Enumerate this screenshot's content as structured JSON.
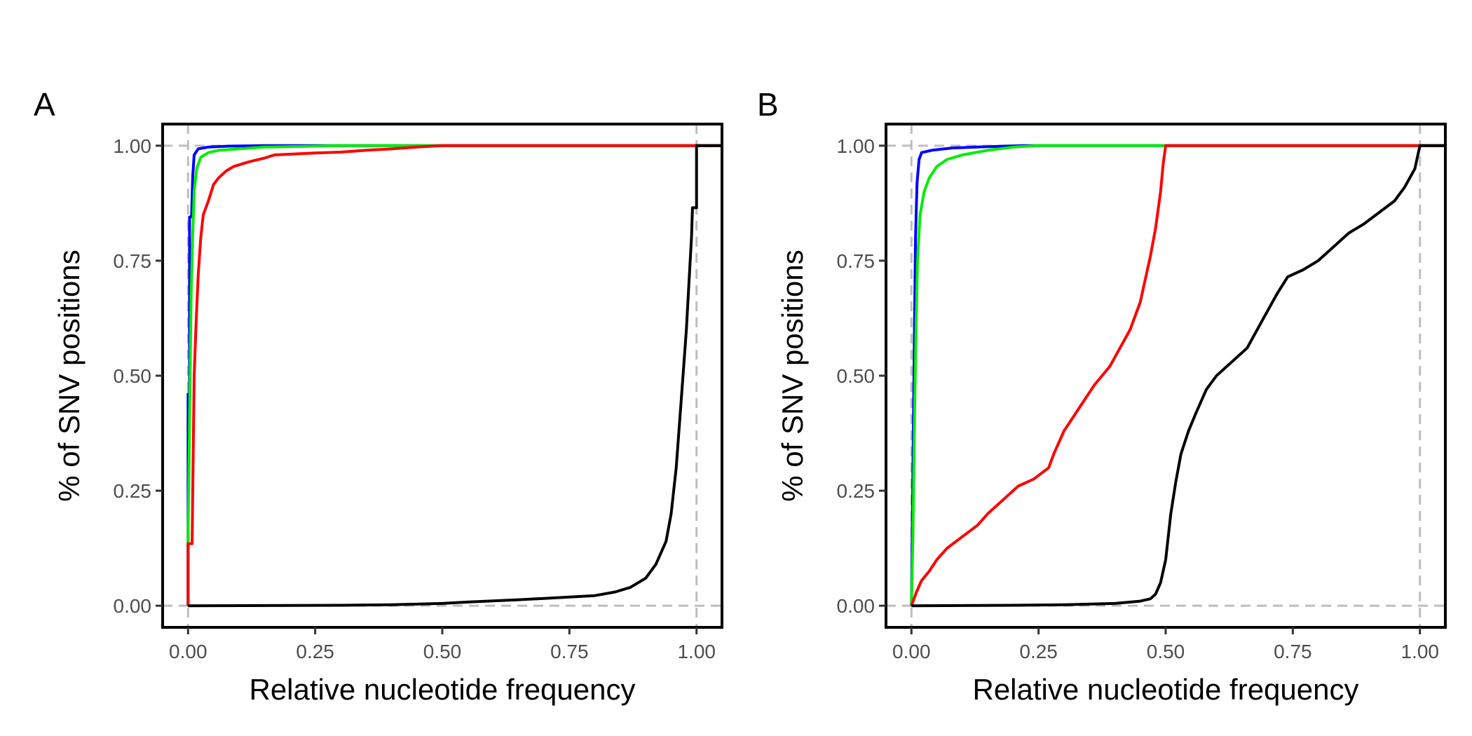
{
  "chart_data": [
    {
      "type": "line",
      "panel_label": "A",
      "xlabel": "Relative nucleotide frequency",
      "ylabel": "% of SNV positions",
      "xlim": [
        -0.05,
        1.05
      ],
      "ylim": [
        -0.047,
        1.047
      ],
      "xticks": [
        0,
        0.25,
        0.5,
        0.75,
        1
      ],
      "xtick_labels": [
        "0.00",
        "0.25",
        "0.50",
        "0.75",
        "1.00"
      ],
      "yticks": [
        0,
        0.25,
        0.5,
        0.75,
        1
      ],
      "ytick_labels": [
        "0.00",
        "0.25",
        "0.50",
        "0.75",
        "1.00"
      ],
      "reference_lines": {
        "x": [
          0,
          1
        ],
        "y": [
          0,
          1
        ],
        "style": "dashed",
        "color": "#bebebe"
      },
      "grid": false,
      "legend": "none",
      "series": [
        {
          "color": "#0000ff",
          "points": [
            [
              0,
              0
            ],
            [
              0,
              0.46
            ],
            [
              0.003,
              0.46
            ],
            [
              0.003,
              0.845
            ],
            [
              0.006,
              0.845
            ],
            [
              0.007,
              0.85
            ],
            [
              0.009,
              0.93
            ],
            [
              0.012,
              0.98
            ],
            [
              0.02,
              0.993
            ],
            [
              0.04,
              0.997
            ],
            [
              0.08,
              0.999
            ],
            [
              0.15,
              1
            ],
            [
              1,
              1
            ],
            [
              1.05,
              1
            ]
          ]
        },
        {
          "color": "#00ee00",
          "points": [
            [
              0,
              0
            ],
            [
              0,
              0.15
            ],
            [
              0.003,
              0.4
            ],
            [
              0.006,
              0.67
            ],
            [
              0.009,
              0.8
            ],
            [
              0.012,
              0.9
            ],
            [
              0.017,
              0.95
            ],
            [
              0.025,
              0.975
            ],
            [
              0.04,
              0.985
            ],
            [
              0.06,
              0.99
            ],
            [
              0.1,
              0.993
            ],
            [
              0.15,
              0.997
            ],
            [
              0.25,
              0.999
            ],
            [
              0.3,
              1
            ],
            [
              1,
              1
            ],
            [
              1.05,
              1
            ]
          ]
        },
        {
          "color": "#ff0000",
          "points": [
            [
              0,
              0
            ],
            [
              0,
              0.135
            ],
            [
              0.008,
              0.135
            ],
            [
              0.008,
              0.14
            ],
            [
              0.012,
              0.5
            ],
            [
              0.016,
              0.62
            ],
            [
              0.02,
              0.72
            ],
            [
              0.025,
              0.8
            ],
            [
              0.03,
              0.85
            ],
            [
              0.04,
              0.88
            ],
            [
              0.05,
              0.915
            ],
            [
              0.06,
              0.93
            ],
            [
              0.075,
              0.945
            ],
            [
              0.09,
              0.955
            ],
            [
              0.12,
              0.965
            ],
            [
              0.15,
              0.973
            ],
            [
              0.17,
              0.98
            ],
            [
              0.25,
              0.984
            ],
            [
              0.3,
              0.986
            ],
            [
              0.35,
              0.99
            ],
            [
              0.4,
              0.993
            ],
            [
              0.45,
              0.997
            ],
            [
              0.5,
              1
            ],
            [
              1,
              1
            ],
            [
              1.05,
              1
            ]
          ]
        },
        {
          "color": "#000000",
          "points": [
            [
              0,
              0
            ],
            [
              0.3,
              0.001
            ],
            [
              0.4,
              0.002
            ],
            [
              0.5,
              0.005
            ],
            [
              0.55,
              0.008
            ],
            [
              0.65,
              0.013
            ],
            [
              0.7,
              0.016
            ],
            [
              0.8,
              0.022
            ],
            [
              0.84,
              0.03
            ],
            [
              0.87,
              0.04
            ],
            [
              0.9,
              0.06
            ],
            [
              0.92,
              0.09
            ],
            [
              0.94,
              0.14
            ],
            [
              0.95,
              0.2
            ],
            [
              0.96,
              0.3
            ],
            [
              0.97,
              0.45
            ],
            [
              0.98,
              0.6
            ],
            [
              0.985,
              0.7
            ],
            [
              0.99,
              0.8
            ],
            [
              0.992,
              0.865
            ],
            [
              1,
              0.865
            ],
            [
              1,
              1
            ],
            [
              1.05,
              1
            ]
          ]
        }
      ]
    },
    {
      "type": "line",
      "panel_label": "B",
      "xlabel": "Relative nucleotide frequency",
      "ylabel": "% of SNV positions",
      "xlim": [
        -0.05,
        1.05
      ],
      "ylim": [
        -0.047,
        1.047
      ],
      "xticks": [
        0,
        0.25,
        0.5,
        0.75,
        1
      ],
      "xtick_labels": [
        "0.00",
        "0.25",
        "0.50",
        "0.75",
        "1.00"
      ],
      "yticks": [
        0,
        0.25,
        0.5,
        0.75,
        1
      ],
      "ytick_labels": [
        "0.00",
        "0.25",
        "0.50",
        "0.75",
        "1.00"
      ],
      "reference_lines": {
        "x": [
          0,
          1
        ],
        "y": [
          0,
          1
        ],
        "style": "dashed",
        "color": "#bebebe"
      },
      "grid": false,
      "legend": "none",
      "series": [
        {
          "color": "#0000ff",
          "points": [
            [
              0,
              0
            ],
            [
              0.003,
              0.3
            ],
            [
              0.006,
              0.6
            ],
            [
              0.008,
              0.8
            ],
            [
              0.011,
              0.92
            ],
            [
              0.015,
              0.97
            ],
            [
              0.02,
              0.985
            ],
            [
              0.04,
              0.99
            ],
            [
              0.08,
              0.995
            ],
            [
              0.15,
              0.998
            ],
            [
              0.22,
              1
            ],
            [
              1,
              1
            ],
            [
              1.05,
              1
            ]
          ]
        },
        {
          "color": "#00ee00",
          "points": [
            [
              0,
              0
            ],
            [
              0.003,
              0.15
            ],
            [
              0.006,
              0.4
            ],
            [
              0.009,
              0.6
            ],
            [
              0.012,
              0.75
            ],
            [
              0.017,
              0.85
            ],
            [
              0.025,
              0.9
            ],
            [
              0.035,
              0.93
            ],
            [
              0.05,
              0.955
            ],
            [
              0.07,
              0.97
            ],
            [
              0.1,
              0.98
            ],
            [
              0.15,
              0.99
            ],
            [
              0.2,
              0.997
            ],
            [
              0.25,
              1
            ],
            [
              1,
              1
            ],
            [
              1.05,
              1
            ]
          ]
        },
        {
          "color": "#ff0000",
          "points": [
            [
              0,
              0
            ],
            [
              0.01,
              0.03
            ],
            [
              0.02,
              0.055
            ],
            [
              0.035,
              0.075
            ],
            [
              0.05,
              0.1
            ],
            [
              0.07,
              0.125
            ],
            [
              0.1,
              0.15
            ],
            [
              0.13,
              0.175
            ],
            [
              0.15,
              0.2
            ],
            [
              0.18,
              0.23
            ],
            [
              0.21,
              0.26
            ],
            [
              0.24,
              0.275
            ],
            [
              0.27,
              0.3
            ],
            [
              0.28,
              0.33
            ],
            [
              0.3,
              0.38
            ],
            [
              0.33,
              0.43
            ],
            [
              0.36,
              0.48
            ],
            [
              0.39,
              0.52
            ],
            [
              0.41,
              0.56
            ],
            [
              0.43,
              0.6
            ],
            [
              0.45,
              0.66
            ],
            [
              0.47,
              0.76
            ],
            [
              0.48,
              0.82
            ],
            [
              0.49,
              0.9
            ],
            [
              0.495,
              0.96
            ],
            [
              0.5,
              1
            ],
            [
              1,
              1
            ],
            [
              1.05,
              1
            ]
          ]
        },
        {
          "color": "#000000",
          "points": [
            [
              0,
              0
            ],
            [
              0.2,
              0.001
            ],
            [
              0.3,
              0.002
            ],
            [
              0.4,
              0.005
            ],
            [
              0.45,
              0.01
            ],
            [
              0.47,
              0.015
            ],
            [
              0.48,
              0.025
            ],
            [
              0.49,
              0.05
            ],
            [
              0.5,
              0.1
            ],
            [
              0.51,
              0.2
            ],
            [
              0.52,
              0.27
            ],
            [
              0.53,
              0.33
            ],
            [
              0.545,
              0.38
            ],
            [
              0.56,
              0.42
            ],
            [
              0.58,
              0.47
            ],
            [
              0.6,
              0.5
            ],
            [
              0.63,
              0.53
            ],
            [
              0.66,
              0.56
            ],
            [
              0.69,
              0.62
            ],
            [
              0.72,
              0.68
            ],
            [
              0.74,
              0.715
            ],
            [
              0.77,
              0.73
            ],
            [
              0.8,
              0.75
            ],
            [
              0.83,
              0.78
            ],
            [
              0.86,
              0.81
            ],
            [
              0.89,
              0.83
            ],
            [
              0.92,
              0.855
            ],
            [
              0.95,
              0.88
            ],
            [
              0.97,
              0.91
            ],
            [
              0.99,
              0.95
            ],
            [
              1,
              1
            ],
            [
              1.05,
              1
            ]
          ]
        }
      ]
    }
  ]
}
